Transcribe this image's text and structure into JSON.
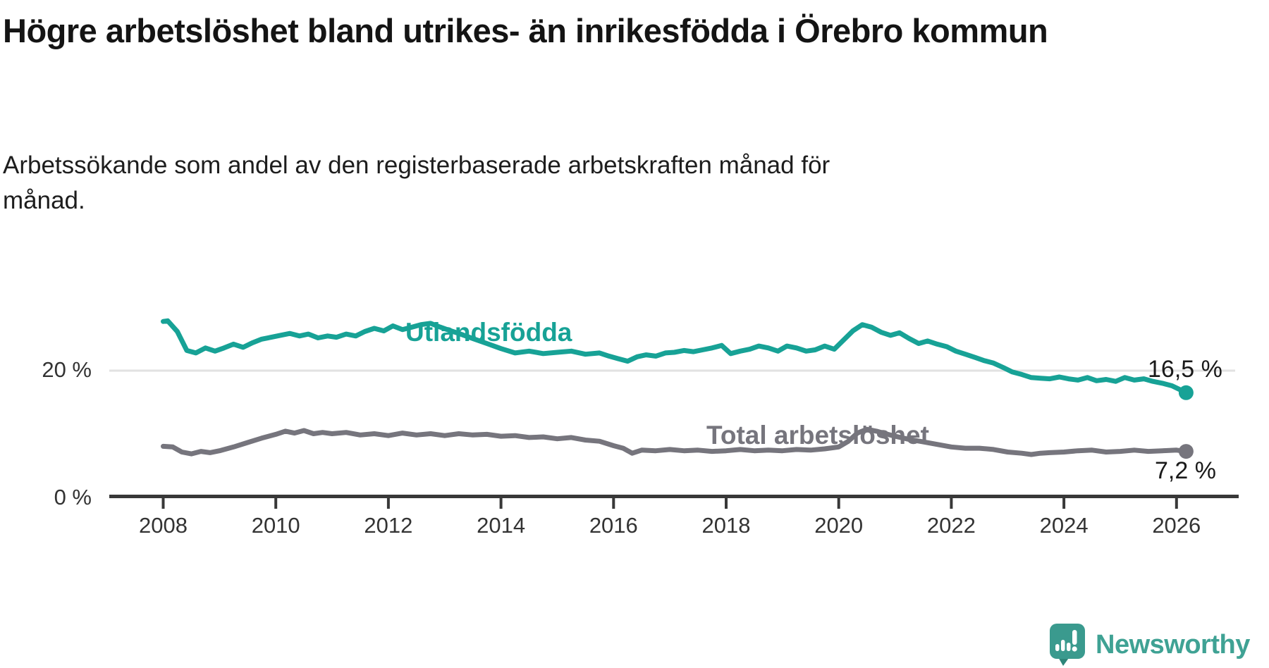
{
  "header": {
    "title": "Högre arbetslöshet bland utrikes- än inrikesfödda i Örebro kommun",
    "subtitle": "Arbetssökande som andel av den registerbaserade arbetskraften månad för månad."
  },
  "chart_data": {
    "type": "line",
    "title": "Högre arbetslöshet bland utrikes- än inrikesfödda i Örebro kommun",
    "subtitle": "Arbetssökande som andel av den registerbaserade arbetskraften månad för månad.",
    "unit": "%",
    "x_range": [
      2008,
      2026.17
    ],
    "ylim": [
      0,
      30
    ],
    "grid": "single horizontal gridline at 20 %",
    "x_tick_years": [
      2008,
      2010,
      2012,
      2014,
      2016,
      2018,
      2020,
      2022,
      2024,
      2026
    ],
    "x_tick_labels": [
      "2008",
      "2010",
      "2012",
      "2014",
      "2016",
      "2018",
      "2020",
      "2022",
      "2024",
      "2026"
    ],
    "y_ticks": [
      {
        "value": 0,
        "label": "0 %"
      },
      {
        "value": 20,
        "label": "20 %"
      }
    ],
    "axis_color": "#383838",
    "gridline_color": "#e2e2e2",
    "series": [
      {
        "name": "Utlandsfödda",
        "color": "#17a296",
        "end_value": 16.5,
        "end_label": "16,5 %",
        "points": [
          [
            2008.0,
            27.8
          ],
          [
            2008.08,
            27.9
          ],
          [
            2008.25,
            26.2
          ],
          [
            2008.42,
            23.2
          ],
          [
            2008.58,
            22.8
          ],
          [
            2008.75,
            23.6
          ],
          [
            2008.92,
            23.1
          ],
          [
            2009.08,
            23.6
          ],
          [
            2009.25,
            24.2
          ],
          [
            2009.42,
            23.7
          ],
          [
            2009.58,
            24.4
          ],
          [
            2009.75,
            25.0
          ],
          [
            2009.92,
            25.3
          ],
          [
            2010.08,
            25.6
          ],
          [
            2010.25,
            25.9
          ],
          [
            2010.42,
            25.5
          ],
          [
            2010.58,
            25.8
          ],
          [
            2010.75,
            25.2
          ],
          [
            2010.92,
            25.5
          ],
          [
            2011.08,
            25.3
          ],
          [
            2011.25,
            25.8
          ],
          [
            2011.42,
            25.5
          ],
          [
            2011.58,
            26.2
          ],
          [
            2011.75,
            26.7
          ],
          [
            2011.92,
            26.3
          ],
          [
            2012.08,
            27.1
          ],
          [
            2012.25,
            26.5
          ],
          [
            2012.42,
            26.9
          ],
          [
            2012.58,
            27.3
          ],
          [
            2012.75,
            27.5
          ],
          [
            2012.92,
            26.9
          ],
          [
            2013.08,
            26.4
          ],
          [
            2013.25,
            25.9
          ],
          [
            2013.5,
            25.1
          ],
          [
            2013.75,
            24.3
          ],
          [
            2014.0,
            23.5
          ],
          [
            2014.25,
            22.8
          ],
          [
            2014.5,
            23.1
          ],
          [
            2014.75,
            22.7
          ],
          [
            2015.0,
            22.9
          ],
          [
            2015.25,
            23.1
          ],
          [
            2015.5,
            22.6
          ],
          [
            2015.75,
            22.8
          ],
          [
            2015.92,
            22.3
          ],
          [
            2016.08,
            21.9
          ],
          [
            2016.25,
            21.5
          ],
          [
            2016.42,
            22.2
          ],
          [
            2016.58,
            22.5
          ],
          [
            2016.75,
            22.3
          ],
          [
            2016.92,
            22.8
          ],
          [
            2017.08,
            22.9
          ],
          [
            2017.25,
            23.2
          ],
          [
            2017.42,
            23.0
          ],
          [
            2017.58,
            23.3
          ],
          [
            2017.75,
            23.6
          ],
          [
            2017.92,
            24.0
          ],
          [
            2018.08,
            22.7
          ],
          [
            2018.25,
            23.1
          ],
          [
            2018.42,
            23.4
          ],
          [
            2018.58,
            23.9
          ],
          [
            2018.75,
            23.6
          ],
          [
            2018.92,
            23.1
          ],
          [
            2019.08,
            23.9
          ],
          [
            2019.25,
            23.6
          ],
          [
            2019.42,
            23.1
          ],
          [
            2019.58,
            23.3
          ],
          [
            2019.75,
            23.9
          ],
          [
            2019.92,
            23.4
          ],
          [
            2020.08,
            24.8
          ],
          [
            2020.25,
            26.3
          ],
          [
            2020.42,
            27.3
          ],
          [
            2020.58,
            26.9
          ],
          [
            2020.75,
            26.1
          ],
          [
            2020.92,
            25.6
          ],
          [
            2021.08,
            26.0
          ],
          [
            2021.25,
            25.1
          ],
          [
            2021.42,
            24.3
          ],
          [
            2021.58,
            24.7
          ],
          [
            2021.75,
            24.2
          ],
          [
            2021.92,
            23.8
          ],
          [
            2022.08,
            23.1
          ],
          [
            2022.25,
            22.6
          ],
          [
            2022.42,
            22.1
          ],
          [
            2022.58,
            21.6
          ],
          [
            2022.75,
            21.2
          ],
          [
            2022.92,
            20.5
          ],
          [
            2023.08,
            19.8
          ],
          [
            2023.25,
            19.4
          ],
          [
            2023.42,
            18.9
          ],
          [
            2023.58,
            18.8
          ],
          [
            2023.75,
            18.7
          ],
          [
            2023.92,
            19.0
          ],
          [
            2024.08,
            18.7
          ],
          [
            2024.25,
            18.5
          ],
          [
            2024.42,
            18.9
          ],
          [
            2024.58,
            18.4
          ],
          [
            2024.75,
            18.6
          ],
          [
            2024.92,
            18.3
          ],
          [
            2025.08,
            18.9
          ],
          [
            2025.25,
            18.5
          ],
          [
            2025.42,
            18.7
          ],
          [
            2025.58,
            18.3
          ],
          [
            2025.75,
            18.0
          ],
          [
            2025.92,
            17.6
          ],
          [
            2026.08,
            16.9
          ],
          [
            2026.17,
            16.5
          ]
        ]
      },
      {
        "name": "Total arbetslöshet",
        "color": "#76757d",
        "end_value": 7.2,
        "end_label": "7,2 %",
        "points": [
          [
            2008.0,
            8.0
          ],
          [
            2008.17,
            7.9
          ],
          [
            2008.33,
            7.1
          ],
          [
            2008.5,
            6.8
          ],
          [
            2008.67,
            7.2
          ],
          [
            2008.83,
            7.0
          ],
          [
            2009.0,
            7.3
          ],
          [
            2009.25,
            7.9
          ],
          [
            2009.5,
            8.6
          ],
          [
            2009.75,
            9.3
          ],
          [
            2010.0,
            9.9
          ],
          [
            2010.17,
            10.4
          ],
          [
            2010.33,
            10.1
          ],
          [
            2010.5,
            10.5
          ],
          [
            2010.67,
            10.0
          ],
          [
            2010.83,
            10.2
          ],
          [
            2011.0,
            10.0
          ],
          [
            2011.25,
            10.2
          ],
          [
            2011.5,
            9.8
          ],
          [
            2011.75,
            10.0
          ],
          [
            2012.0,
            9.7
          ],
          [
            2012.25,
            10.1
          ],
          [
            2012.5,
            9.8
          ],
          [
            2012.75,
            10.0
          ],
          [
            2013.0,
            9.7
          ],
          [
            2013.25,
            10.0
          ],
          [
            2013.5,
            9.8
          ],
          [
            2013.75,
            9.9
          ],
          [
            2014.0,
            9.6
          ],
          [
            2014.25,
            9.7
          ],
          [
            2014.5,
            9.4
          ],
          [
            2014.75,
            9.5
          ],
          [
            2015.0,
            9.2
          ],
          [
            2015.25,
            9.4
          ],
          [
            2015.5,
            9.0
          ],
          [
            2015.75,
            8.8
          ],
          [
            2016.0,
            8.1
          ],
          [
            2016.17,
            7.7
          ],
          [
            2016.33,
            6.9
          ],
          [
            2016.5,
            7.4
          ],
          [
            2016.75,
            7.3
          ],
          [
            2017.0,
            7.5
          ],
          [
            2017.25,
            7.3
          ],
          [
            2017.5,
            7.4
          ],
          [
            2017.75,
            7.2
          ],
          [
            2018.0,
            7.3
          ],
          [
            2018.25,
            7.5
          ],
          [
            2018.5,
            7.3
          ],
          [
            2018.75,
            7.4
          ],
          [
            2019.0,
            7.3
          ],
          [
            2019.25,
            7.5
          ],
          [
            2019.5,
            7.4
          ],
          [
            2019.75,
            7.6
          ],
          [
            2020.0,
            7.9
          ],
          [
            2020.17,
            8.8
          ],
          [
            2020.33,
            10.1
          ],
          [
            2020.5,
            10.7
          ],
          [
            2020.67,
            10.4
          ],
          [
            2020.83,
            10.0
          ],
          [
            2021.0,
            9.6
          ],
          [
            2021.25,
            9.1
          ],
          [
            2021.5,
            8.7
          ],
          [
            2021.75,
            8.3
          ],
          [
            2022.0,
            7.9
          ],
          [
            2022.25,
            7.7
          ],
          [
            2022.5,
            7.7
          ],
          [
            2022.75,
            7.5
          ],
          [
            2023.0,
            7.1
          ],
          [
            2023.25,
            6.9
          ],
          [
            2023.42,
            6.7
          ],
          [
            2023.58,
            6.9
          ],
          [
            2023.75,
            7.0
          ],
          [
            2024.0,
            7.1
          ],
          [
            2024.25,
            7.3
          ],
          [
            2024.5,
            7.4
          ],
          [
            2024.75,
            7.1
          ],
          [
            2025.0,
            7.2
          ],
          [
            2025.25,
            7.4
          ],
          [
            2025.5,
            7.2
          ],
          [
            2025.75,
            7.3
          ],
          [
            2026.0,
            7.4
          ],
          [
            2026.17,
            7.2
          ]
        ]
      }
    ],
    "series_label_positions": "inline on lines",
    "legend_position": "none"
  },
  "footer": {
    "brand": "Newsworthy",
    "brand_color": "#3fa294",
    "logo_icon": "speech-bubble-bar-chart-exclamation"
  }
}
